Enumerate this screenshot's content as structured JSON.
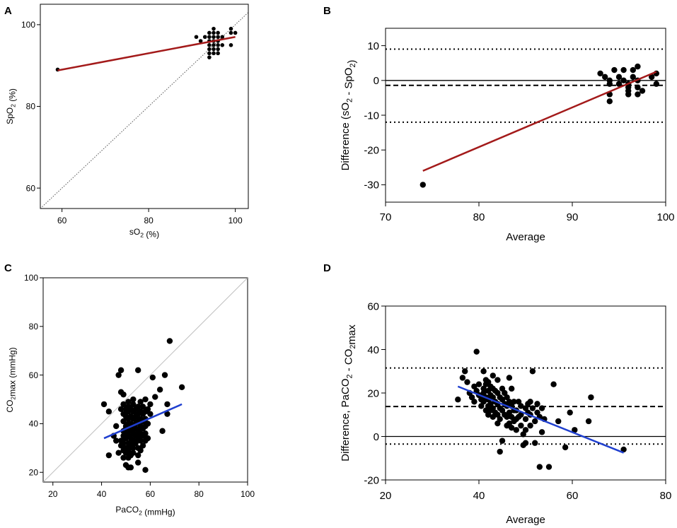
{
  "colors": {
    "regression_ab": "#a31a1a",
    "regression_cd": "#1f3fcf",
    "identity_c": "#c0c0c0"
  },
  "chart_data": [
    {
      "panel": "A",
      "type": "scatter",
      "xlabel": {
        "main": "sO",
        "sub": "2",
        "tail": " (%)"
      },
      "ylabel": {
        "main": "SpO",
        "sub": "2",
        "tail": " (%)"
      },
      "xlim": [
        55,
        103
      ],
      "ylim": [
        55,
        105
      ],
      "xticks": [
        "60",
        "80",
        "100"
      ],
      "yticks": [
        "60",
        "80",
        "100"
      ],
      "points": [
        [
          59,
          89
        ],
        [
          91,
          97
        ],
        [
          92,
          96
        ],
        [
          93,
          97
        ],
        [
          94,
          98
        ],
        [
          94,
          97
        ],
        [
          94,
          96
        ],
        [
          94,
          95
        ],
        [
          94,
          94
        ],
        [
          94,
          93
        ],
        [
          94,
          92
        ],
        [
          95,
          99
        ],
        [
          95,
          98
        ],
        [
          95,
          97
        ],
        [
          95,
          96
        ],
        [
          95,
          95
        ],
        [
          95,
          94
        ],
        [
          95,
          93
        ],
        [
          96,
          98
        ],
        [
          96,
          97
        ],
        [
          96,
          96
        ],
        [
          96,
          95
        ],
        [
          96,
          94
        ],
        [
          96,
          93
        ],
        [
          97,
          97
        ],
        [
          97,
          95
        ],
        [
          99,
          99
        ],
        [
          99,
          98
        ],
        [
          99,
          95
        ],
        [
          100,
          98
        ]
      ],
      "identity_line": [
        [
          55,
          55
        ],
        [
          103,
          103
        ]
      ],
      "regression": [
        [
          59,
          88.8
        ],
        [
          100,
          97
        ]
      ]
    },
    {
      "panel": "B",
      "type": "scatter",
      "xlabel": {
        "main": "Average",
        "sub": "",
        "tail": ""
      },
      "ylabel": {
        "main": "Difference (sO",
        "sub": "2",
        "mid": " - SpO",
        "sub2": "2",
        "tail": ")"
      },
      "xlim": [
        70,
        100
      ],
      "ylim": [
        -35,
        15
      ],
      "xticks": [
        "70",
        "80",
        "90",
        "100"
      ],
      "yticks": [
        "-30",
        "-20",
        "-10",
        "0",
        "10"
      ],
      "points": [
        [
          74,
          -30
        ],
        [
          93,
          2
        ],
        [
          93.5,
          1
        ],
        [
          94,
          -1
        ],
        [
          94,
          -4
        ],
        [
          94,
          -6
        ],
        [
          94,
          0
        ],
        [
          94.5,
          3
        ],
        [
          95,
          -1
        ],
        [
          95,
          1
        ],
        [
          95.5,
          0
        ],
        [
          95.5,
          3
        ],
        [
          96,
          -1
        ],
        [
          96,
          -2
        ],
        [
          96,
          -3
        ],
        [
          96,
          -4
        ],
        [
          96.5,
          1
        ],
        [
          96.5,
          3
        ],
        [
          97,
          0
        ],
        [
          97,
          -2
        ],
        [
          97,
          -4
        ],
        [
          97,
          4
        ],
        [
          97.5,
          -3
        ],
        [
          98.5,
          1
        ],
        [
          99,
          -1
        ],
        [
          99,
          2
        ]
      ],
      "hlines": {
        "zero": 0,
        "mean": -1.4,
        "upper_loa": 9,
        "lower_loa": -12
      },
      "regression": [
        [
          74,
          -26
        ],
        [
          99,
          2.5
        ]
      ]
    },
    {
      "panel": "C",
      "type": "scatter",
      "xlabel": {
        "main": "PaCO",
        "sub": "2",
        "tail": " (mmHg)"
      },
      "ylabel": {
        "main": "CO",
        "sub": "2",
        "tail": "max (mmHg)"
      },
      "xlim": [
        16,
        100
      ],
      "ylim": [
        16,
        100
      ],
      "xticks": [
        "20",
        "40",
        "60",
        "80",
        "100"
      ],
      "yticks": [
        "20",
        "40",
        "60",
        "80",
        "100"
      ],
      "points": [
        [
          41,
          48
        ],
        [
          43,
          45
        ],
        [
          43,
          27
        ],
        [
          45,
          35
        ],
        [
          46,
          39
        ],
        [
          46,
          33
        ],
        [
          47,
          60
        ],
        [
          47,
          28
        ],
        [
          48,
          62
        ],
        [
          48,
          53
        ],
        [
          48,
          46
        ],
        [
          48,
          33
        ],
        [
          48,
          31
        ],
        [
          49,
          52
        ],
        [
          49,
          48
        ],
        [
          49,
          44
        ],
        [
          49,
          41
        ],
        [
          49,
          37
        ],
        [
          49,
          35
        ],
        [
          49,
          32
        ],
        [
          49,
          29
        ],
        [
          49,
          26
        ],
        [
          50,
          46
        ],
        [
          50,
          43
        ],
        [
          50,
          39
        ],
        [
          50,
          38
        ],
        [
          50,
          36
        ],
        [
          50,
          34
        ],
        [
          50,
          30
        ],
        [
          50,
          28
        ],
        [
          50,
          23
        ],
        [
          51,
          49
        ],
        [
          51,
          47
        ],
        [
          51,
          45
        ],
        [
          51,
          42
        ],
        [
          51,
          40
        ],
        [
          51,
          38
        ],
        [
          51,
          35
        ],
        [
          51,
          32
        ],
        [
          51,
          29
        ],
        [
          51,
          26
        ],
        [
          51,
          22
        ],
        [
          52,
          46
        ],
        [
          52,
          43
        ],
        [
          52,
          40
        ],
        [
          52,
          37
        ],
        [
          52,
          34
        ],
        [
          52,
          31
        ],
        [
          52,
          27
        ],
        [
          52,
          22
        ],
        [
          53,
          50
        ],
        [
          53,
          48
        ],
        [
          53,
          45
        ],
        [
          53,
          42
        ],
        [
          53,
          39
        ],
        [
          53,
          36
        ],
        [
          53,
          33
        ],
        [
          53,
          30
        ],
        [
          53,
          28
        ],
        [
          54,
          46
        ],
        [
          54,
          43
        ],
        [
          54,
          40
        ],
        [
          54,
          38
        ],
        [
          54,
          35
        ],
        [
          54,
          32
        ],
        [
          55,
          62
        ],
        [
          55,
          47
        ],
        [
          55,
          44
        ],
        [
          55,
          41
        ],
        [
          55,
          37
        ],
        [
          55,
          34
        ],
        [
          55,
          30
        ],
        [
          55,
          27
        ],
        [
          55,
          24
        ],
        [
          56,
          49
        ],
        [
          56,
          45
        ],
        [
          56,
          42
        ],
        [
          56,
          39
        ],
        [
          56,
          36
        ],
        [
          56,
          33
        ],
        [
          56,
          29
        ],
        [
          57,
          47
        ],
        [
          57,
          44
        ],
        [
          57,
          41
        ],
        [
          57,
          38
        ],
        [
          57,
          35
        ],
        [
          57,
          31
        ],
        [
          58,
          50
        ],
        [
          58,
          45
        ],
        [
          58,
          42
        ],
        [
          58,
          39
        ],
        [
          58,
          36
        ],
        [
          58,
          33
        ],
        [
          58,
          21
        ],
        [
          59,
          46
        ],
        [
          59,
          40
        ],
        [
          59,
          34
        ],
        [
          60,
          48
        ],
        [
          60,
          44
        ],
        [
          61,
          59
        ],
        [
          62,
          51
        ],
        [
          64,
          54
        ],
        [
          65,
          37
        ],
        [
          66,
          60
        ],
        [
          67,
          44
        ],
        [
          67,
          48
        ],
        [
          68,
          74
        ],
        [
          73,
          55
        ]
      ],
      "identity_line": [
        [
          16,
          16
        ],
        [
          100,
          100
        ]
      ],
      "regression": [
        [
          41,
          34
        ],
        [
          73,
          48
        ]
      ]
    },
    {
      "panel": "D",
      "type": "scatter",
      "xlabel": {
        "main": "Average",
        "sub": "",
        "tail": ""
      },
      "ylabel": {
        "main": "Difference, PaCO",
        "sub": "2",
        "mid": " - CO",
        "sub2": "2",
        "tail": "max"
      },
      "xlim": [
        20,
        80
      ],
      "ylim": [
        -20,
        60
      ],
      "xticks": [
        "20",
        "40",
        "60",
        "80"
      ],
      "yticks": [
        "-20",
        "0",
        "20",
        "40",
        "60"
      ],
      "points": [
        [
          35.5,
          17
        ],
        [
          36.5,
          27
        ],
        [
          37,
          30
        ],
        [
          37.5,
          25
        ],
        [
          38,
          20
        ],
        [
          38.5,
          18
        ],
        [
          39,
          23
        ],
        [
          39,
          16
        ],
        [
          39.5,
          39
        ],
        [
          39.5,
          21
        ],
        [
          40,
          24
        ],
        [
          40,
          19
        ],
        [
          40.5,
          17
        ],
        [
          40.5,
          14
        ],
        [
          41,
          30
        ],
        [
          41,
          22
        ],
        [
          41,
          20
        ],
        [
          41,
          16
        ],
        [
          41.5,
          26
        ],
        [
          41.5,
          24
        ],
        [
          41.5,
          18
        ],
        [
          41.5,
          12
        ],
        [
          42,
          25
        ],
        [
          42,
          21
        ],
        [
          42,
          17
        ],
        [
          42,
          14
        ],
        [
          42,
          10
        ],
        [
          42.5,
          23
        ],
        [
          42.5,
          19
        ],
        [
          42.5,
          15
        ],
        [
          42.5,
          12
        ],
        [
          43,
          28
        ],
        [
          43,
          22
        ],
        [
          43,
          18
        ],
        [
          43,
          13
        ],
        [
          43,
          9
        ],
        [
          43.5,
          21
        ],
        [
          43.5,
          16
        ],
        [
          43.5,
          11
        ],
        [
          44,
          26
        ],
        [
          44,
          20
        ],
        [
          44,
          15
        ],
        [
          44,
          10
        ],
        [
          44,
          6
        ],
        [
          44.5,
          -7
        ],
        [
          44.5,
          18
        ],
        [
          44.5,
          13
        ],
        [
          44.5,
          8
        ],
        [
          45,
          22
        ],
        [
          45,
          17
        ],
        [
          45,
          12
        ],
        [
          45,
          -2
        ],
        [
          45.5,
          20
        ],
        [
          45.5,
          15
        ],
        [
          45.5,
          10
        ],
        [
          46,
          18
        ],
        [
          46,
          14
        ],
        [
          46,
          9
        ],
        [
          46,
          5
        ],
        [
          46.5,
          27
        ],
        [
          46.5,
          16
        ],
        [
          46.5,
          11
        ],
        [
          46.5,
          6
        ],
        [
          47,
          22
        ],
        [
          47,
          14
        ],
        [
          47,
          9
        ],
        [
          47,
          4
        ],
        [
          47.5,
          16
        ],
        [
          47.5,
          12
        ],
        [
          47.5,
          7
        ],
        [
          48,
          12
        ],
        [
          48,
          8
        ],
        [
          48,
          3
        ],
        [
          48.5,
          16
        ],
        [
          48.5,
          9
        ],
        [
          49,
          14
        ],
        [
          49,
          10
        ],
        [
          49,
          5
        ],
        [
          49.5,
          -4
        ],
        [
          49.5,
          1
        ],
        [
          50,
          13
        ],
        [
          50,
          8
        ],
        [
          50,
          3
        ],
        [
          50,
          -3
        ],
        [
          50.5,
          15
        ],
        [
          50.5,
          11
        ],
        [
          51,
          16
        ],
        [
          51,
          10
        ],
        [
          51,
          5
        ],
        [
          51.5,
          30
        ],
        [
          51.5,
          13
        ],
        [
          52,
          7
        ],
        [
          52,
          -3
        ],
        [
          52.5,
          15
        ],
        [
          52.5,
          11
        ],
        [
          53,
          9
        ],
        [
          53,
          -14
        ],
        [
          53.5,
          13
        ],
        [
          53.5,
          2
        ],
        [
          54,
          8
        ],
        [
          55,
          -14
        ],
        [
          56,
          24
        ],
        [
          57,
          7
        ],
        [
          58.5,
          -5
        ],
        [
          59.5,
          11
        ],
        [
          60.5,
          3
        ],
        [
          63.5,
          7
        ],
        [
          64,
          18
        ],
        [
          71,
          -6
        ]
      ],
      "hlines": {
        "zero": 0,
        "mean": 13.8,
        "upper_loa": 31.5,
        "lower_loa": -3.5
      },
      "regression": [
        [
          35.5,
          23
        ],
        [
          71,
          -7.5
        ]
      ]
    }
  ]
}
